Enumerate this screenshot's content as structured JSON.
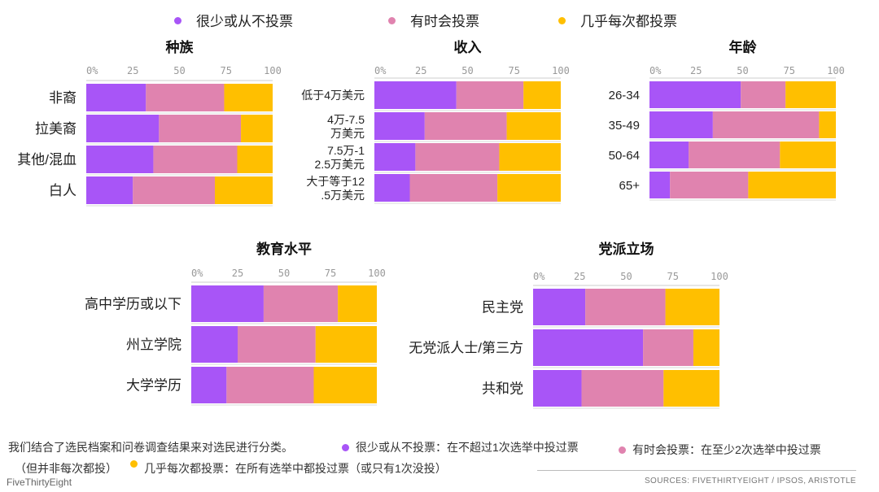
{
  "legend": [
    {
      "label": "很少或从不投票",
      "color": "#A855F7"
    },
    {
      "label": "有时会投票",
      "color": "#E083AF"
    },
    {
      "label": "几乎每次都投票",
      "color": "#FFBF00"
    }
  ],
  "colors": {
    "rarely": "#A855F7",
    "sometimes": "#E083AF",
    "always": "#FFBF00"
  },
  "chart_data": [
    {
      "type": "bar",
      "stacked": true,
      "orientation": "horizontal",
      "title": "种族",
      "categories": [
        "非裔",
        "拉美裔",
        "其他/混血",
        "白人"
      ],
      "xlim": [
        0,
        100
      ],
      "xticks": [
        "0%",
        "25",
        "50",
        "75",
        "100"
      ],
      "series": [
        {
          "name": "很少或从不投票",
          "values": [
            32,
            39,
            36,
            25
          ]
        },
        {
          "name": "有时会投票",
          "values": [
            42,
            44,
            45,
            44
          ]
        },
        {
          "name": "几乎每次都投票",
          "values": [
            26,
            17,
            19,
            31
          ]
        }
      ]
    },
    {
      "type": "bar",
      "stacked": true,
      "orientation": "horizontal",
      "title": "收入",
      "categories": [
        "低于4万美元",
        "4万-7.5万美元",
        "7.5万-12.5万美元",
        "大于等于12.5万美元"
      ],
      "xlim": [
        0,
        100
      ],
      "xticks": [
        "0%",
        "25",
        "50",
        "75",
        "100"
      ],
      "series": [
        {
          "name": "很少或从不投票",
          "values": [
            44,
            27,
            22,
            19
          ]
        },
        {
          "name": "有时会投票",
          "values": [
            36,
            44,
            45,
            47
          ]
        },
        {
          "name": "几乎每次都投票",
          "values": [
            20,
            29,
            33,
            34
          ]
        }
      ]
    },
    {
      "type": "bar",
      "stacked": true,
      "orientation": "horizontal",
      "title": "年龄",
      "categories": [
        "26-34",
        "35-49",
        "50-64",
        "65+"
      ],
      "xlim": [
        0,
        100
      ],
      "xticks": [
        "0%",
        "25",
        "50",
        "75",
        "100"
      ],
      "series": [
        {
          "name": "很少或从不投票",
          "values": [
            49,
            34,
            21,
            11
          ]
        },
        {
          "name": "有时会投票",
          "values": [
            24,
            57,
            49,
            42
          ]
        },
        {
          "name": "几乎每次都投票",
          "values": [
            27,
            9,
            30,
            47
          ]
        }
      ]
    },
    {
      "type": "bar",
      "stacked": true,
      "orientation": "horizontal",
      "title": "教育水平",
      "categories": [
        "高中学历或以下",
        "州立学院",
        "大学学历"
      ],
      "xlim": [
        0,
        100
      ],
      "xticks": [
        "0%",
        "25",
        "50",
        "75",
        "100"
      ],
      "series": [
        {
          "name": "很少或从不投票",
          "values": [
            39,
            25,
            19
          ]
        },
        {
          "name": "有时会投票",
          "values": [
            40,
            42,
            47
          ]
        },
        {
          "name": "几乎每次都投票",
          "values": [
            21,
            33,
            34
          ]
        }
      ]
    },
    {
      "type": "bar",
      "stacked": true,
      "orientation": "horizontal",
      "title": "党派立场",
      "categories": [
        "民主党",
        "无党派人士/第三方",
        "共和党"
      ],
      "xlim": [
        0,
        100
      ],
      "xticks": [
        "0%",
        "25",
        "50",
        "75",
        "100"
      ],
      "series": [
        {
          "name": "很少或从不投票",
          "values": [
            28,
            59,
            26
          ]
        },
        {
          "name": "有时会投票",
          "values": [
            43,
            27,
            44
          ]
        },
        {
          "name": "几乎每次都投票",
          "values": [
            29,
            14,
            30
          ]
        }
      ]
    }
  ],
  "footer": {
    "note_line1": "我们结合了选民档案和问卷调查结果来对选民进行分类。",
    "note_line2": "（但并非每次都投）",
    "def_rarely": "很少或从不投票：在不超过1次选举中投过票",
    "def_sometimes": "有时会投票：在至少2次选举中投过票",
    "def_always": "几乎每次都投票：在所有选举中都投过票（或只有1次没投）",
    "brand": "FiveThirtyEight",
    "sources": "SOURCES: FIVETHIRTYEIGHT / IPSOS, ARISTOTLE"
  }
}
